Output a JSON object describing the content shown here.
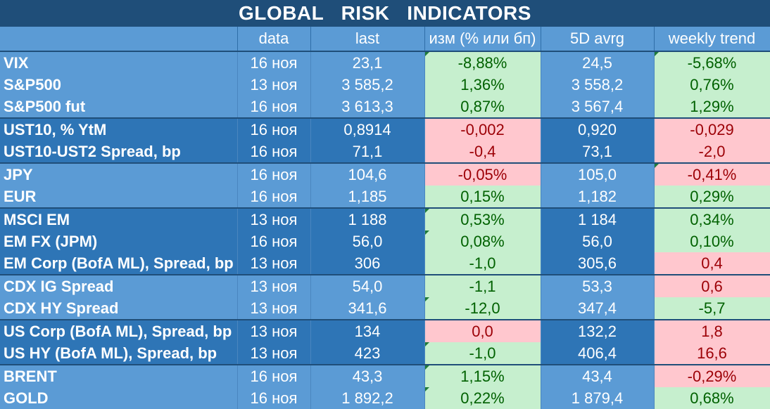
{
  "title": "GLOBAL   RISK   INDICATORS",
  "columns": [
    "",
    "data",
    "last",
    "изм (% или бп)",
    "5D avrg",
    "weekly trend"
  ],
  "rows": [
    {
      "name": "VIX",
      "date": "16 ноя",
      "last": "23,1",
      "chg": "-8,88%",
      "chg_sign": "pos",
      "avg": "24,5",
      "trend": "-5,68%",
      "trend_sign": "pos",
      "group": "light",
      "start": true
    },
    {
      "name": "S&P500",
      "date": "13 ноя",
      "last": "3 585,2",
      "chg": "1,36%",
      "chg_sign": "pos",
      "avg": "3 558,2",
      "trend": "0,76%",
      "trend_sign": "pos",
      "group": "light",
      "start": false
    },
    {
      "name": "S&P500 fut",
      "date": "16 ноя",
      "last": "3 613,3",
      "chg": "0,87%",
      "chg_sign": "pos",
      "avg": "3 567,4",
      "trend": "1,29%",
      "trend_sign": "pos",
      "group": "light",
      "start": false
    },
    {
      "name": "UST10, % YtM",
      "date": "16 ноя",
      "last": "0,8914",
      "chg": "-0,002",
      "chg_sign": "neg",
      "avg": "0,920",
      "trend": "-0,029",
      "trend_sign": "neg",
      "group": "dark",
      "start": true
    },
    {
      "name": "UST10-UST2 Spread, bp",
      "date": "16 ноя",
      "last": "71,1",
      "chg": "-0,4",
      "chg_sign": "neg",
      "avg": "73,1",
      "trend": "-2,0",
      "trend_sign": "neg",
      "group": "dark",
      "start": false
    },
    {
      "name": "JPY",
      "date": "16 ноя",
      "last": "104,6",
      "chg": "-0,05%",
      "chg_sign": "neg",
      "avg": "105,0",
      "trend": "-0,41%",
      "trend_sign": "neg",
      "group": "light",
      "start": true
    },
    {
      "name": "EUR",
      "date": "16 ноя",
      "last": "1,185",
      "chg": "0,15%",
      "chg_sign": "pos",
      "avg": "1,182",
      "trend": "0,29%",
      "trend_sign": "pos",
      "group": "light",
      "start": false
    },
    {
      "name": "MSCI EM",
      "date": "13 ноя",
      "last": "1 188",
      "chg": "0,53%",
      "chg_sign": "pos",
      "avg": "1 184",
      "trend": "0,34%",
      "trend_sign": "pos",
      "group": "dark",
      "start": true
    },
    {
      "name": "EM FX (JPM)",
      "date": "16 ноя",
      "last": "56,0",
      "chg": "0,08%",
      "chg_sign": "pos",
      "avg": "56,0",
      "trend": "0,10%",
      "trend_sign": "pos",
      "group": "dark",
      "start": false
    },
    {
      "name": "EM Corp (BofA ML), Spread, bp",
      "date": "13 ноя",
      "last": "306",
      "chg": "-1,0",
      "chg_sign": "pos",
      "avg": "305,6",
      "trend": "0,4",
      "trend_sign": "neg",
      "group": "dark",
      "start": false
    },
    {
      "name": "CDX IG Spread",
      "date": "13 ноя",
      "last": "54,0",
      "chg": "-1,1",
      "chg_sign": "pos",
      "avg": "53,3",
      "trend": "0,6",
      "trend_sign": "neg",
      "group": "light",
      "start": true
    },
    {
      "name": "CDX HY Spread",
      "date": "13 ноя",
      "last": "341,6",
      "chg": "-12,0",
      "chg_sign": "pos",
      "avg": "347,4",
      "trend": "-5,7",
      "trend_sign": "pos",
      "group": "light",
      "start": false
    },
    {
      "name": "US Corp (BofA ML), Spread, bp",
      "date": "13 ноя",
      "last": "134",
      "chg": "0,0",
      "chg_sign": "neg",
      "avg": "132,2",
      "trend": "1,8",
      "trend_sign": "neg",
      "group": "dark",
      "start": true
    },
    {
      "name": "US HY (BofA ML), Spread, bp",
      "date": "13 ноя",
      "last": "423",
      "chg": "-1,0",
      "chg_sign": "pos",
      "avg": "406,4",
      "trend": "16,6",
      "trend_sign": "neg",
      "group": "dark",
      "start": false
    },
    {
      "name": "BRENT",
      "date": "16 ноя",
      "last": "43,3",
      "chg": "1,15%",
      "chg_sign": "pos",
      "avg": "43,4",
      "trend": "-0,29%",
      "trend_sign": "neg",
      "group": "light",
      "start": true
    },
    {
      "name": "GOLD",
      "date": "16 ноя",
      "last": "1 892,2",
      "chg": "0,22%",
      "chg_sign": "pos",
      "avg": "1 879,4",
      "trend": "0,68%",
      "trend_sign": "pos",
      "group": "light",
      "start": false
    }
  ],
  "colors": {
    "title_bg": "#1f4e79",
    "group_light": "#5b9bd5",
    "group_dark": "#2e75b6",
    "positive_bg": "#c6efce",
    "positive_text": "#006100",
    "negative_bg": "#ffc7ce",
    "negative_text": "#9c0006"
  }
}
